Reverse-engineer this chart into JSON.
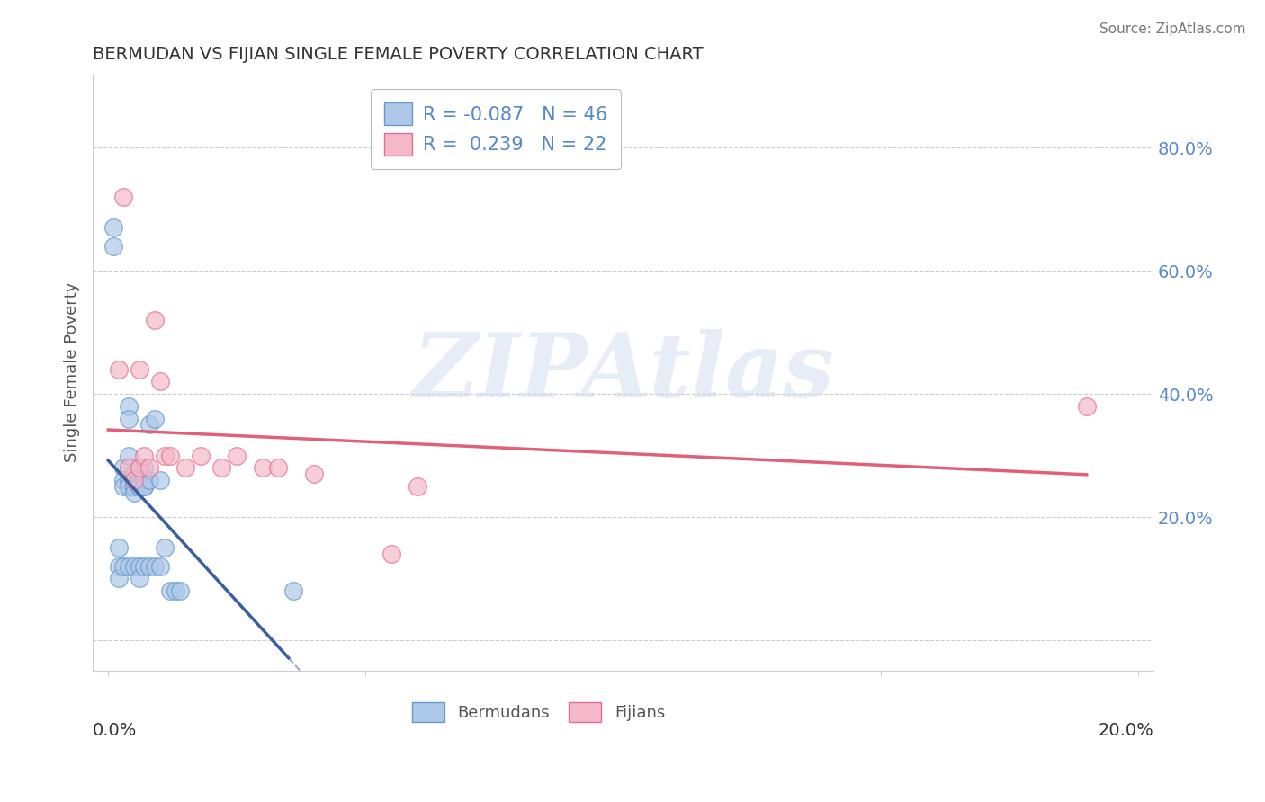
{
  "title": "BERMUDAN VS FIJIAN SINGLE FEMALE POVERTY CORRELATION CHART",
  "source": "Source: ZipAtlas.com",
  "ylabel": "Single Female Poverty",
  "xlim": [
    -0.003,
    0.203
  ],
  "ylim": [
    -0.05,
    0.92
  ],
  "bermudan_R": -0.087,
  "bermudan_N": 46,
  "fijian_R": 0.239,
  "fijian_N": 22,
  "bermudan_color": "#adc8e8",
  "bermudan_edge_color": "#6699cc",
  "bermudan_line_color": "#3a5fa0",
  "fijian_color": "#f5b8c8",
  "fijian_edge_color": "#e07090",
  "fijian_line_color": "#e0607a",
  "ytick_color": "#5588cc",
  "bermudan_x": [
    0.001,
    0.001,
    0.002,
    0.002,
    0.002,
    0.003,
    0.003,
    0.003,
    0.003,
    0.004,
    0.004,
    0.004,
    0.004,
    0.004,
    0.004,
    0.005,
    0.005,
    0.005,
    0.005,
    0.005,
    0.005,
    0.005,
    0.006,
    0.006,
    0.006,
    0.006,
    0.006,
    0.006,
    0.006,
    0.007,
    0.007,
    0.007,
    0.007,
    0.007,
    0.008,
    0.008,
    0.008,
    0.009,
    0.009,
    0.01,
    0.01,
    0.011,
    0.012,
    0.013,
    0.014,
    0.036
  ],
  "bermudan_y": [
    0.64,
    0.67,
    0.15,
    0.12,
    0.1,
    0.28,
    0.26,
    0.25,
    0.12,
    0.38,
    0.36,
    0.3,
    0.26,
    0.25,
    0.12,
    0.27,
    0.26,
    0.26,
    0.25,
    0.25,
    0.24,
    0.12,
    0.28,
    0.26,
    0.25,
    0.25,
    0.25,
    0.12,
    0.1,
    0.28,
    0.26,
    0.25,
    0.25,
    0.12,
    0.35,
    0.26,
    0.12,
    0.36,
    0.12,
    0.26,
    0.12,
    0.15,
    0.08,
    0.08,
    0.08,
    0.08
  ],
  "fijian_x": [
    0.002,
    0.003,
    0.004,
    0.005,
    0.006,
    0.006,
    0.007,
    0.008,
    0.009,
    0.01,
    0.011,
    0.012,
    0.015,
    0.018,
    0.022,
    0.025,
    0.03,
    0.033,
    0.04,
    0.055,
    0.06,
    0.19
  ],
  "fijian_y": [
    0.44,
    0.72,
    0.28,
    0.26,
    0.28,
    0.44,
    0.3,
    0.28,
    0.52,
    0.42,
    0.3,
    0.3,
    0.28,
    0.3,
    0.28,
    0.3,
    0.28,
    0.28,
    0.27,
    0.14,
    0.25,
    0.38
  ],
  "watermark_text": "ZIPAtlas",
  "background_color": "#ffffff",
  "grid_color": "#cccccc",
  "spine_color": "#cccccc"
}
